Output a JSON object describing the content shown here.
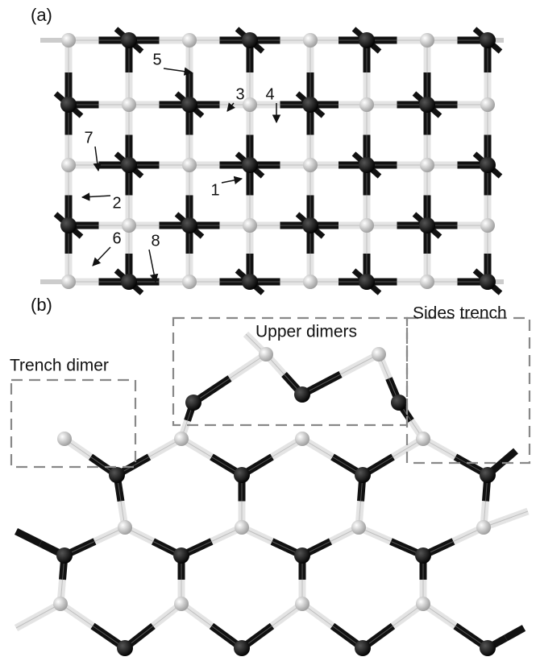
{
  "panel_a": {
    "label": "(a)",
    "annotations": [
      "5",
      "3",
      "4",
      "7",
      "2",
      "1",
      "6",
      "8"
    ]
  },
  "panel_b": {
    "label": "(b)",
    "regions": [
      "Upper dimers",
      "Sides trench",
      "Trench dimer"
    ]
  }
}
